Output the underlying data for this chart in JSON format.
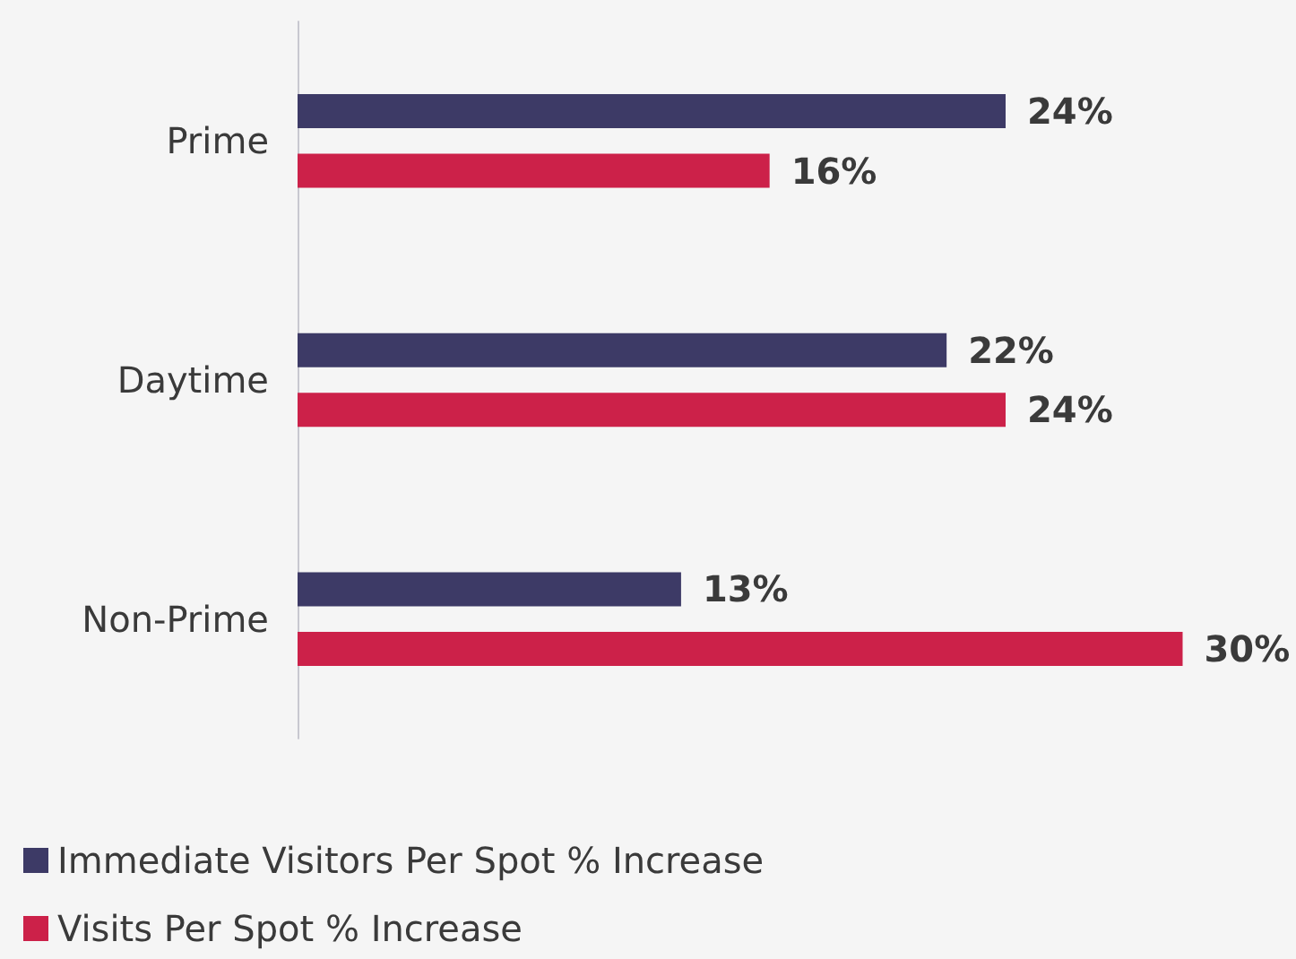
{
  "chart_data": {
    "type": "bar",
    "orientation": "horizontal",
    "categories": [
      "Prime",
      "Daytime",
      "Non-Prime"
    ],
    "series": [
      {
        "name": "Immediate Visitors Per Spot % Increase",
        "color": "#3d3a66",
        "values": [
          24,
          22,
          13
        ],
        "value_labels": [
          "24%",
          "22%",
          "13%"
        ]
      },
      {
        "name": "Visits Per Spot % Increase",
        "color": "#cc2149",
        "values": [
          16,
          24,
          30
        ],
        "value_labels": [
          "16%",
          "24%",
          "30%"
        ]
      }
    ],
    "legend": "bottom left",
    "grid": false
  }
}
